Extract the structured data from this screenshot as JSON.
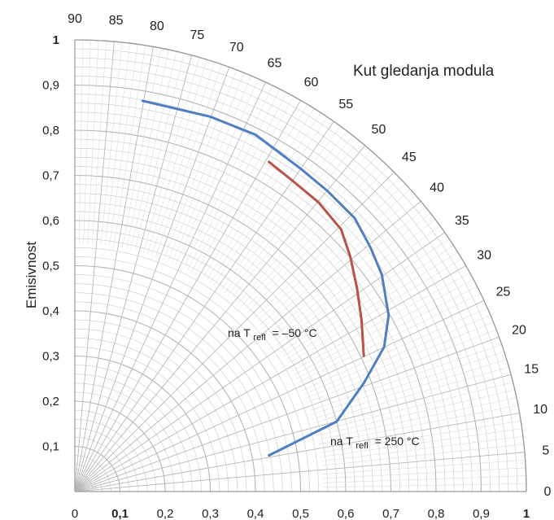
{
  "chart_data": {
    "type": "polar-line",
    "title": "Kut gledanja modula",
    "ylabel": "Emisivnost",
    "xlabel": "",
    "radial_range": [
      0,
      1
    ],
    "angle_range_deg": [
      0,
      90
    ],
    "grid": true,
    "x_ticks": [
      "0",
      "0,1",
      "0,2",
      "0,3",
      "0,4",
      "0,5",
      "0,6",
      "0,7",
      "0,8",
      "0,9",
      "1"
    ],
    "y_ticks": [
      "0,1",
      "0,2",
      "0,3",
      "0,4",
      "0,5",
      "0,6",
      "0,7",
      "0,8",
      "0,9",
      "1"
    ],
    "angle_ticks": [
      "0",
      "5",
      "10",
      "15",
      "20",
      "25",
      "30",
      "35",
      "40",
      "45",
      "50",
      "55",
      "60",
      "65",
      "70",
      "75",
      "80",
      "85",
      "90"
    ],
    "colors": {
      "blue": "#4f7fc0",
      "red": "#b8524a",
      "grid": "#c8c8c8"
    },
    "series": [
      {
        "color": "blue",
        "annotation": {
          "prefix": "na",
          "T": "T",
          "sub": "refl",
          "value": "= 250 °C"
        },
        "points": [
          {
            "x": 0.43,
            "y": 0.08
          },
          {
            "x": 0.58,
            "y": 0.155
          },
          {
            "x": 0.64,
            "y": 0.24
          },
          {
            "x": 0.685,
            "y": 0.32
          },
          {
            "x": 0.695,
            "y": 0.39
          },
          {
            "x": 0.68,
            "y": 0.48
          },
          {
            "x": 0.655,
            "y": 0.54
          },
          {
            "x": 0.62,
            "y": 0.605
          },
          {
            "x": 0.56,
            "y": 0.665
          },
          {
            "x": 0.5,
            "y": 0.715
          },
          {
            "x": 0.46,
            "y": 0.745
          },
          {
            "x": 0.4,
            "y": 0.79
          },
          {
            "x": 0.3,
            "y": 0.83
          },
          {
            "x": 0.15,
            "y": 0.865
          }
        ]
      },
      {
        "color": "red",
        "annotation": {
          "prefix": "na",
          "T": "T",
          "sub": "refl",
          "value": "= –50 °C"
        },
        "points": [
          {
            "x": 0.64,
            "y": 0.3
          },
          {
            "x": 0.635,
            "y": 0.38
          },
          {
            "x": 0.625,
            "y": 0.45
          },
          {
            "x": 0.61,
            "y": 0.52
          },
          {
            "x": 0.59,
            "y": 0.58
          },
          {
            "x": 0.54,
            "y": 0.64
          },
          {
            "x": 0.48,
            "y": 0.69
          },
          {
            "x": 0.43,
            "y": 0.73
          }
        ]
      }
    ]
  }
}
